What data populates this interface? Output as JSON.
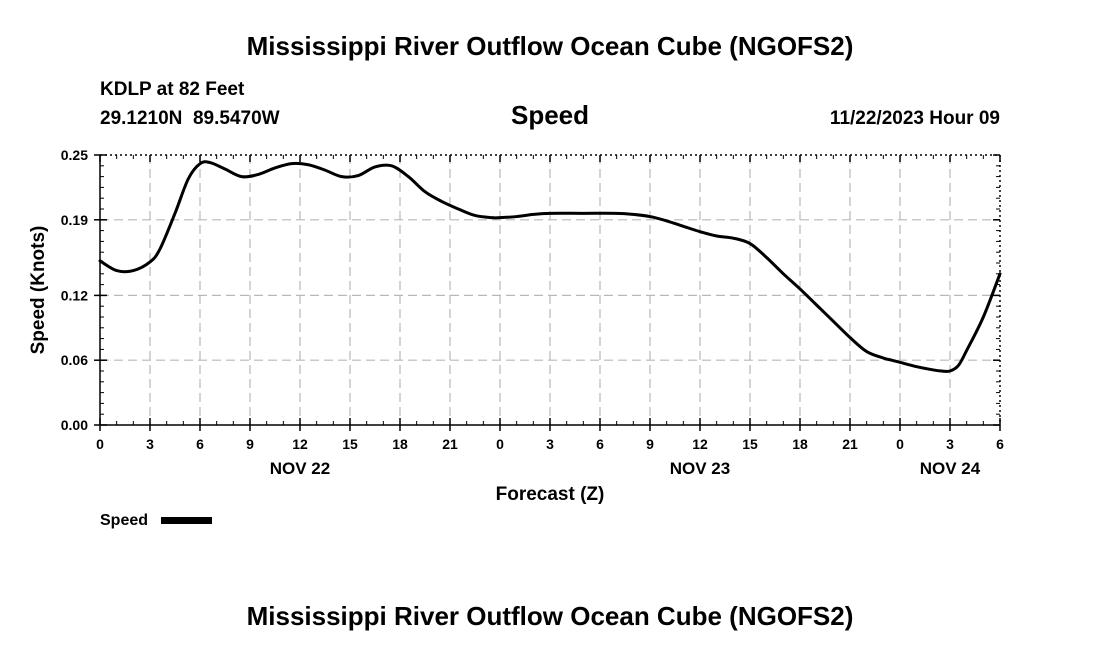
{
  "header": {
    "title": "Mississippi River Outflow Ocean Cube (NGOFS2)",
    "station": "KDLP at 82 Feet",
    "coordinates": "29.1210N  89.5470W",
    "plot_name": "Speed",
    "timestamp": "11/22/2023 Hour 09"
  },
  "footer": {
    "title": "Mississippi River Outflow Ocean Cube (NGOFS2)"
  },
  "legend": {
    "label": "Speed"
  },
  "chart_data": {
    "type": "line",
    "title": "Speed",
    "xlabel": "Forecast (Z)",
    "ylabel": "Speed (Knots)",
    "xlim": [
      0,
      54
    ],
    "ylim": [
      0.0,
      0.25
    ],
    "grid": true,
    "legend_position": "bottom-left",
    "x_ticks": [
      0,
      3,
      6,
      9,
      12,
      15,
      18,
      21,
      24,
      27,
      30,
      33,
      36,
      39,
      42,
      45,
      48,
      51,
      54
    ],
    "x_tick_labels": [
      "0",
      "3",
      "6",
      "9",
      "12",
      "15",
      "18",
      "21",
      "0",
      "3",
      "6",
      "9",
      "12",
      "15",
      "18",
      "21",
      "0",
      "3",
      "6"
    ],
    "y_ticks": [
      0.0,
      0.06,
      0.12,
      0.19,
      0.25
    ],
    "y_tick_labels": [
      "0.00",
      "0.06",
      "0.12",
      "0.19",
      "0.25"
    ],
    "date_labels": [
      {
        "x": 12,
        "label": "NOV 22"
      },
      {
        "x": 36,
        "label": "NOV 23"
      },
      {
        "x": 51,
        "label": "NOV 24"
      }
    ],
    "series": [
      {
        "name": "Speed",
        "color": "#000000",
        "x": [
          0,
          1,
          2,
          3,
          3.6,
          4.5,
          5.3,
          6,
          6.6,
          7.5,
          8.5,
          9.5,
          10.5,
          11.5,
          12.5,
          13.5,
          14.5,
          15.5,
          16.5,
          17.5,
          18.5,
          19.5,
          20.5,
          21.5,
          22.5,
          23.5,
          24,
          25,
          26,
          27,
          29,
          31,
          32,
          33,
          34,
          35,
          36,
          37,
          38,
          39,
          40,
          41,
          42,
          43,
          44,
          45,
          46,
          47,
          47.5,
          48,
          49,
          50,
          50.5,
          51,
          51.5,
          52,
          53,
          54
        ],
        "values": [
          0.152,
          0.143,
          0.143,
          0.151,
          0.163,
          0.196,
          0.228,
          0.242,
          0.243,
          0.237,
          0.23,
          0.232,
          0.238,
          0.242,
          0.241,
          0.236,
          0.23,
          0.231,
          0.239,
          0.24,
          0.23,
          0.216,
          0.207,
          0.2,
          0.194,
          0.192,
          0.192,
          0.193,
          0.195,
          0.196,
          0.196,
          0.196,
          0.195,
          0.193,
          0.189,
          0.184,
          0.179,
          0.175,
          0.173,
          0.168,
          0.155,
          0.14,
          0.126,
          0.111,
          0.096,
          0.081,
          0.068,
          0.062,
          0.06,
          0.058,
          0.054,
          0.051,
          0.05,
          0.05,
          0.055,
          0.069,
          0.1,
          0.14
        ]
      }
    ]
  }
}
